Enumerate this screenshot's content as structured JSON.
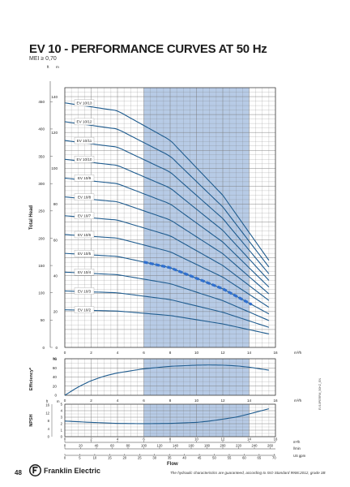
{
  "page": {
    "title": "EV 10 - PERFORMANCE CURVES AT 50 Hz",
    "subtitle": "MEI ≥ 0,70",
    "page_number": "48",
    "brand": "Franklin Electric",
    "footnote": "The hydraulic characteristics are guaranteed, according to ISO Standard 9906:2012, grade 3B",
    "doc_code": "EV10PERFM_50HZ_EN",
    "colors": {
      "curve": "#1f5c8f",
      "band": "#b7cbe6",
      "highlight": "#2f6fcf",
      "grid": "#777777"
    }
  },
  "chart_data": [
    {
      "type": "line",
      "ylabel": "Total Head",
      "xlabel": "m³/h",
      "x_unit": "m³/h",
      "left_unit": "ft",
      "right_unit": "m",
      "xlim": [
        0,
        16
      ],
      "ylim_m": [
        0,
        145
      ],
      "x_ticks": [
        0,
        2,
        4,
        6,
        8,
        10,
        12,
        14,
        16
      ],
      "ft_ticks": [
        0,
        50,
        100,
        150,
        200,
        250,
        300,
        350,
        400,
        450
      ],
      "m_ticks": [
        0,
        20,
        40,
        60,
        80,
        100,
        120,
        140
      ],
      "preferred_range": [
        6,
        14
      ],
      "grid": true,
      "highlighted_series": "EV 10/5",
      "highlight_x": [
        6,
        14.2
      ],
      "series": [
        {
          "name": "EV 10/2",
          "x": [
            0,
            4,
            8,
            12,
            15.5
          ],
          "values": [
            21,
            20.3,
            17.8,
            13.1,
            7.5
          ]
        },
        {
          "name": "EV 10/3",
          "x": [
            0,
            4,
            8,
            12,
            15.5
          ],
          "values": [
            31.5,
            30.5,
            26.7,
            19.6,
            11.2
          ]
        },
        {
          "name": "EV 10/4",
          "x": [
            0,
            4,
            8,
            12,
            15.5
          ],
          "values": [
            42,
            40.6,
            35.6,
            26.1,
            15
          ]
        },
        {
          "name": "EV 10/5",
          "x": [
            0,
            4,
            8,
            12,
            15.5
          ],
          "values": [
            52.5,
            50.8,
            44.5,
            32.7,
            18.7
          ]
        },
        {
          "name": "EV 10/6",
          "x": [
            0,
            4,
            8,
            12,
            15.5
          ],
          "values": [
            63,
            61,
            53.4,
            39.2,
            22.4
          ]
        },
        {
          "name": "EV 10/7",
          "x": [
            0,
            4,
            8,
            12,
            15.5
          ],
          "values": [
            73.5,
            71.1,
            62.3,
            45.7,
            26.2
          ]
        },
        {
          "name": "EV 10/8",
          "x": [
            0,
            4,
            8,
            12,
            15.5
          ],
          "values": [
            84,
            81.3,
            71.2,
            52.3,
            29.9
          ]
        },
        {
          "name": "EV 10/9",
          "x": [
            0,
            4,
            8,
            12,
            15.5
          ],
          "values": [
            94.5,
            91.4,
            80.1,
            58.8,
            33.7
          ]
        },
        {
          "name": "EV 10/10",
          "x": [
            0,
            4,
            8,
            12,
            15.5
          ],
          "values": [
            105,
            101.6,
            89,
            65.3,
            37.4
          ]
        },
        {
          "name": "EV 10/11",
          "x": [
            0,
            4,
            8,
            12,
            15.5
          ],
          "values": [
            115.5,
            111.8,
            97.9,
            71.9,
            41.1
          ]
        },
        {
          "name": "EV 10/12",
          "x": [
            0,
            4,
            8,
            12,
            15.5
          ],
          "values": [
            126,
            121.9,
            106.8,
            78.4,
            44.9
          ]
        },
        {
          "name": "EV 10/13",
          "x": [
            0,
            4,
            8,
            12,
            15.5
          ],
          "values": [
            136.5,
            132.1,
            115.7,
            84.9,
            48.6
          ]
        }
      ]
    },
    {
      "type": "line",
      "ylabel": "Efficiency*",
      "left_unit": "%",
      "xlabel": "m³/h",
      "xlim": [
        0,
        16
      ],
      "ylim": [
        0,
        80
      ],
      "y_ticks": [
        0,
        20,
        40,
        60,
        80
      ],
      "x_ticks": [
        0,
        2,
        4,
        6,
        8,
        10,
        12,
        14,
        16
      ],
      "series": [
        {
          "x": [
            0,
            1,
            2,
            3,
            4,
            6,
            8,
            10,
            11,
            12,
            13,
            14,
            15.5
          ],
          "values": [
            0,
            18,
            32,
            42,
            49,
            58,
            63.5,
            66,
            66.5,
            66,
            64.5,
            61.5,
            55
          ]
        }
      ]
    },
    {
      "type": "line",
      "ylabel": "NPSH",
      "left_unit": "ft",
      "right_unit": "m",
      "xlim": [
        0,
        16
      ],
      "ylim_m": [
        0,
        5
      ],
      "m_ticks": [
        0,
        1,
        2,
        3,
        4,
        5
      ],
      "ft_ticks": [
        0,
        4,
        8,
        12,
        16
      ],
      "x_ticks": [
        0,
        2,
        4,
        6,
        8,
        10,
        12,
        14,
        16
      ],
      "series": [
        {
          "x": [
            0,
            2,
            4,
            6,
            8,
            10,
            11,
            12,
            13,
            14,
            15.5
          ],
          "values": [
            2.4,
            2.2,
            2.05,
            2.0,
            2.05,
            2.2,
            2.4,
            2.7,
            3.0,
            3.5,
            4.3
          ]
        }
      ]
    }
  ],
  "flow_axes": {
    "m3h_unit": "m³/h",
    "lmin_unit": "l/min",
    "usgpm_unit": "US gpm",
    "lmin_ticks": [
      0,
      20,
      40,
      60,
      80,
      100,
      120,
      140,
      160,
      180,
      200,
      220,
      240,
      260
    ],
    "usgpm_ticks": [
      0,
      5,
      10,
      15,
      20,
      25,
      30,
      35,
      40,
      45,
      50,
      55,
      60,
      65,
      70
    ],
    "title": "Flow"
  }
}
